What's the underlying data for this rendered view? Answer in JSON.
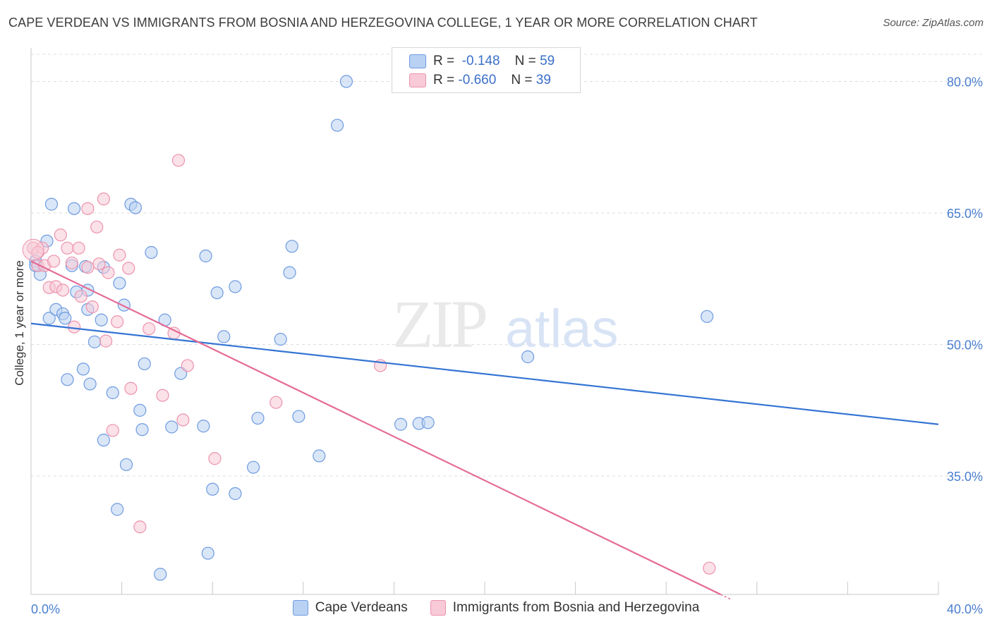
{
  "title": "CAPE VERDEAN VS IMMIGRANTS FROM BOSNIA AND HERZEGOVINA COLLEGE, 1 YEAR OR MORE CORRELATION CHART",
  "source": "Source: ZipAtlas.com",
  "watermark": {
    "zip": "ZIP",
    "atlas": "atlas"
  },
  "legend": {
    "rows": [
      {
        "r_label": "R =",
        "r_value": "-0.148",
        "n_label": "N =",
        "n_value": "59"
      },
      {
        "r_label": "R =",
        "r_value": "-0.660",
        "n_label": "N =",
        "n_value": "39"
      }
    ]
  },
  "chart_data": {
    "type": "scatter",
    "xlabel": "",
    "ylabel": "College, 1 year or more",
    "xlim": [
      0,
      40
    ],
    "ylim": [
      21.5,
      83.5
    ],
    "x_tick_labels": [
      "0.0%",
      "40.0%"
    ],
    "y_ticks": [
      35,
      50,
      65,
      80
    ],
    "y_tick_labels": [
      "35.0%",
      "50.0%",
      "65.0%",
      "80.0%"
    ],
    "grid": true,
    "legend_position": "bottom",
    "colors": {
      "blue_fill": "#b9d1f3",
      "blue_stroke": "#6e9be0",
      "blue_line": "#3474d4",
      "pink_fill": "#f8c9d6",
      "pink_stroke": "#ec93ad",
      "pink_line": "#e56b95",
      "tick_text": "#4a7fd0"
    },
    "series": [
      {
        "name": "Cape Verdeans",
        "color": "#6e9be0",
        "trend": {
          "x": [
            0,
            40
          ],
          "y": [
            52.4,
            40.9
          ]
        },
        "points": [
          [
            0.2,
            59.5
          ],
          [
            0.4,
            58.0
          ],
          [
            0.7,
            61.8
          ],
          [
            0.8,
            53.0
          ],
          [
            0.9,
            66.0
          ],
          [
            1.1,
            54.0
          ],
          [
            1.4,
            53.5
          ],
          [
            1.5,
            53.0
          ],
          [
            1.6,
            46.0
          ],
          [
            1.8,
            59.0
          ],
          [
            1.9,
            65.5
          ],
          [
            2.0,
            56.0
          ],
          [
            2.3,
            47.2
          ],
          [
            2.5,
            54.0
          ],
          [
            2.5,
            56.2
          ],
          [
            2.6,
            45.5
          ],
          [
            2.8,
            50.3
          ],
          [
            3.1,
            52.8
          ],
          [
            3.2,
            39.1
          ],
          [
            3.2,
            58.8
          ],
          [
            3.6,
            44.5
          ],
          [
            3.8,
            31.2
          ],
          [
            3.9,
            57.0
          ],
          [
            4.1,
            54.5
          ],
          [
            4.2,
            36.3
          ],
          [
            4.4,
            66.0
          ],
          [
            4.6,
            65.6
          ],
          [
            4.8,
            42.5
          ],
          [
            4.9,
            40.3
          ],
          [
            5.0,
            47.8
          ],
          [
            5.3,
            60.5
          ],
          [
            5.7,
            23.8
          ],
          [
            5.9,
            52.8
          ],
          [
            6.2,
            40.6
          ],
          [
            6.6,
            46.7
          ],
          [
            7.6,
            40.7
          ],
          [
            7.7,
            60.1
          ],
          [
            7.8,
            26.2
          ],
          [
            8.0,
            33.5
          ],
          [
            8.2,
            55.9
          ],
          [
            8.5,
            50.9
          ],
          [
            9.0,
            56.6
          ],
          [
            9.0,
            33.0
          ],
          [
            9.8,
            36.0
          ],
          [
            10.0,
            41.6
          ],
          [
            11.0,
            50.6
          ],
          [
            11.4,
            58.2
          ],
          [
            11.5,
            61.2
          ],
          [
            11.8,
            41.8
          ],
          [
            12.7,
            37.3
          ],
          [
            13.5,
            75.0
          ],
          [
            13.9,
            80.0
          ],
          [
            16.3,
            40.9
          ],
          [
            17.1,
            41.0
          ],
          [
            17.5,
            41.1
          ],
          [
            21.9,
            48.6
          ],
          [
            29.8,
            53.2
          ],
          [
            0.2,
            59.0
          ],
          [
            2.4,
            58.9
          ]
        ]
      },
      {
        "name": "Immigrants from Bosnia and Herzegovina",
        "color": "#ec93ad",
        "trend": {
          "x": [
            0,
            30.4
          ],
          "y": [
            59.5,
            21.5
          ]
        },
        "points": [
          [
            0.1,
            61.0
          ],
          [
            0.3,
            59.0
          ],
          [
            0.5,
            61.0
          ],
          [
            0.6,
            59.0
          ],
          [
            0.8,
            56.5
          ],
          [
            1.0,
            59.5
          ],
          [
            1.1,
            56.6
          ],
          [
            1.3,
            62.5
          ],
          [
            1.4,
            56.2
          ],
          [
            1.6,
            61.0
          ],
          [
            1.8,
            59.3
          ],
          [
            1.9,
            52.0
          ],
          [
            2.1,
            61.0
          ],
          [
            2.2,
            55.5
          ],
          [
            2.5,
            58.8
          ],
          [
            2.5,
            65.5
          ],
          [
            2.7,
            54.3
          ],
          [
            2.9,
            63.4
          ],
          [
            3.0,
            59.2
          ],
          [
            3.2,
            66.6
          ],
          [
            3.3,
            50.4
          ],
          [
            3.4,
            58.2
          ],
          [
            3.6,
            40.2
          ],
          [
            3.8,
            52.6
          ],
          [
            3.9,
            60.2
          ],
          [
            4.3,
            58.7
          ],
          [
            4.4,
            45.0
          ],
          [
            4.8,
            29.2
          ],
          [
            5.2,
            51.8
          ],
          [
            5.8,
            44.2
          ],
          [
            6.3,
            51.3
          ],
          [
            6.5,
            71.0
          ],
          [
            6.7,
            41.4
          ],
          [
            6.9,
            47.6
          ],
          [
            8.1,
            37.0
          ],
          [
            10.8,
            43.4
          ],
          [
            15.4,
            47.6
          ],
          [
            29.9,
            24.5
          ],
          [
            0.3,
            60.5
          ]
        ]
      }
    ]
  }
}
